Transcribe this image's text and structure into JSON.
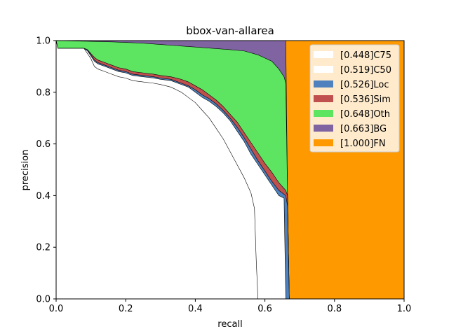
{
  "chart_data": {
    "type": "area",
    "title": "bbox-van-allarea",
    "xlabel": "recall",
    "ylabel": "precision",
    "xlim": [
      0,
      1
    ],
    "ylim": [
      0,
      1
    ],
    "x_ticks": [
      "0.0",
      "0.2",
      "0.4",
      "0.6",
      "0.8",
      "1.0"
    ],
    "y_ticks": [
      "0.0",
      "0.2",
      "0.4",
      "0.6",
      "0.8",
      "1.0"
    ],
    "grid": false,
    "legend_position": "upper right",
    "series": [
      {
        "name": "[0.448]C75",
        "color": "#ffffff",
        "curve": [
          [
            0,
            1.0
          ],
          [
            0.005,
            0.97
          ],
          [
            0.08,
            0.97
          ],
          [
            0.09,
            0.95
          ],
          [
            0.1,
            0.93
          ],
          [
            0.11,
            0.9
          ],
          [
            0.12,
            0.89
          ],
          [
            0.14,
            0.88
          ],
          [
            0.16,
            0.87
          ],
          [
            0.18,
            0.86
          ],
          [
            0.2,
            0.855
          ],
          [
            0.22,
            0.845
          ],
          [
            0.25,
            0.84
          ],
          [
            0.28,
            0.835
          ],
          [
            0.3,
            0.83
          ],
          [
            0.33,
            0.82
          ],
          [
            0.36,
            0.8
          ],
          [
            0.38,
            0.78
          ],
          [
            0.4,
            0.76
          ],
          [
            0.42,
            0.73
          ],
          [
            0.44,
            0.7
          ],
          [
            0.46,
            0.66
          ],
          [
            0.48,
            0.62
          ],
          [
            0.5,
            0.57
          ],
          [
            0.52,
            0.52
          ],
          [
            0.54,
            0.47
          ],
          [
            0.56,
            0.41
          ],
          [
            0.565,
            0.38
          ],
          [
            0.57,
            0.35
          ],
          [
            0.575,
            0.15
          ],
          [
            0.58,
            0.0
          ]
        ]
      },
      {
        "name": "[0.519]C50",
        "color": "#ffffff",
        "curve": [
          [
            0,
            1.0
          ],
          [
            0.005,
            0.97
          ],
          [
            0.08,
            0.97
          ],
          [
            0.09,
            0.96
          ],
          [
            0.1,
            0.94
          ],
          [
            0.11,
            0.92
          ],
          [
            0.12,
            0.91
          ],
          [
            0.14,
            0.9
          ],
          [
            0.16,
            0.89
          ],
          [
            0.18,
            0.88
          ],
          [
            0.2,
            0.875
          ],
          [
            0.22,
            0.865
          ],
          [
            0.25,
            0.86
          ],
          [
            0.28,
            0.855
          ],
          [
            0.3,
            0.85
          ],
          [
            0.33,
            0.845
          ],
          [
            0.36,
            0.83
          ],
          [
            0.38,
            0.82
          ],
          [
            0.4,
            0.8
          ],
          [
            0.42,
            0.78
          ],
          [
            0.44,
            0.765
          ],
          [
            0.46,
            0.745
          ],
          [
            0.48,
            0.72
          ],
          [
            0.5,
            0.69
          ],
          [
            0.52,
            0.65
          ],
          [
            0.54,
            0.61
          ],
          [
            0.56,
            0.56
          ],
          [
            0.58,
            0.52
          ],
          [
            0.6,
            0.48
          ],
          [
            0.62,
            0.44
          ],
          [
            0.64,
            0.4
          ],
          [
            0.655,
            0.39
          ],
          [
            0.66,
            0.0
          ]
        ]
      },
      {
        "name": "[0.526]Loc",
        "color": "#4e81bd",
        "curve": [
          [
            0,
            1.0
          ],
          [
            0.005,
            0.97
          ],
          [
            0.08,
            0.97
          ],
          [
            0.09,
            0.965
          ],
          [
            0.1,
            0.945
          ],
          [
            0.11,
            0.925
          ],
          [
            0.12,
            0.915
          ],
          [
            0.14,
            0.905
          ],
          [
            0.16,
            0.895
          ],
          [
            0.18,
            0.885
          ],
          [
            0.2,
            0.88
          ],
          [
            0.22,
            0.87
          ],
          [
            0.25,
            0.865
          ],
          [
            0.28,
            0.86
          ],
          [
            0.3,
            0.855
          ],
          [
            0.33,
            0.85
          ],
          [
            0.36,
            0.835
          ],
          [
            0.38,
            0.825
          ],
          [
            0.4,
            0.81
          ],
          [
            0.42,
            0.79
          ],
          [
            0.44,
            0.775
          ],
          [
            0.46,
            0.755
          ],
          [
            0.48,
            0.73
          ],
          [
            0.5,
            0.7
          ],
          [
            0.52,
            0.665
          ],
          [
            0.54,
            0.625
          ],
          [
            0.56,
            0.58
          ],
          [
            0.58,
            0.535
          ],
          [
            0.6,
            0.495
          ],
          [
            0.62,
            0.455
          ],
          [
            0.64,
            0.42
          ],
          [
            0.66,
            0.4
          ],
          [
            0.665,
            0.36
          ],
          [
            0.67,
            0.0
          ]
        ]
      },
      {
        "name": "[0.536]Sim",
        "color": "#c0504d",
        "curve": [
          [
            0,
            1.0
          ],
          [
            0.005,
            0.97
          ],
          [
            0.08,
            0.97
          ],
          [
            0.09,
            0.965
          ],
          [
            0.1,
            0.95
          ],
          [
            0.11,
            0.935
          ],
          [
            0.12,
            0.925
          ],
          [
            0.14,
            0.915
          ],
          [
            0.16,
            0.905
          ],
          [
            0.18,
            0.895
          ],
          [
            0.2,
            0.89
          ],
          [
            0.22,
            0.88
          ],
          [
            0.25,
            0.875
          ],
          [
            0.28,
            0.87
          ],
          [
            0.3,
            0.865
          ],
          [
            0.33,
            0.86
          ],
          [
            0.36,
            0.85
          ],
          [
            0.38,
            0.84
          ],
          [
            0.4,
            0.825
          ],
          [
            0.42,
            0.81
          ],
          [
            0.44,
            0.79
          ],
          [
            0.46,
            0.77
          ],
          [
            0.48,
            0.745
          ],
          [
            0.5,
            0.715
          ],
          [
            0.52,
            0.685
          ],
          [
            0.54,
            0.645
          ],
          [
            0.56,
            0.605
          ],
          [
            0.58,
            0.565
          ],
          [
            0.6,
            0.525
          ],
          [
            0.62,
            0.49
          ],
          [
            0.64,
            0.45
          ],
          [
            0.66,
            0.42
          ],
          [
            0.665,
            0.4
          ],
          [
            0.67,
            0.0
          ]
        ]
      },
      {
        "name": "[0.648]Oth",
        "color": "#5de561",
        "curve": [
          [
            0,
            1.0
          ],
          [
            0.16,
            0.995
          ],
          [
            0.25,
            0.99
          ],
          [
            0.3,
            0.985
          ],
          [
            0.35,
            0.98
          ],
          [
            0.4,
            0.975
          ],
          [
            0.45,
            0.97
          ],
          [
            0.5,
            0.965
          ],
          [
            0.54,
            0.96
          ],
          [
            0.58,
            0.945
          ],
          [
            0.62,
            0.92
          ],
          [
            0.64,
            0.89
          ],
          [
            0.655,
            0.86
          ],
          [
            0.66,
            0.835
          ],
          [
            0.665,
            0.4
          ],
          [
            0.67,
            0.0
          ]
        ]
      },
      {
        "name": "[0.663]BG",
        "color": "#8064a2",
        "curve": [
          [
            0,
            1.0
          ],
          [
            0.66,
            1.0
          ],
          [
            0.665,
            0.4
          ],
          [
            0.67,
            0.0
          ]
        ]
      },
      {
        "name": "[1.000]FN",
        "color": "#ff9900",
        "curve": [
          [
            0,
            1.0
          ],
          [
            1.0,
            1.0
          ],
          [
            1.0,
            0.0
          ]
        ]
      }
    ]
  }
}
